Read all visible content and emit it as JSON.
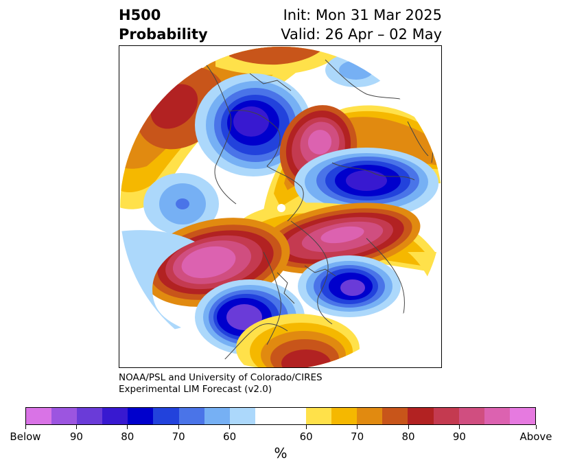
{
  "title": {
    "left_line1": "H500",
    "left_line2": "Probability",
    "right_line1": "Init: Mon 31 Mar 2025",
    "right_line2": "Valid: 26 Apr – 02 May"
  },
  "credits": {
    "line1": "NOAA/PSL and University of Colorado/CIRES",
    "line2": "Experimental LIM Forecast (v2.0)"
  },
  "colorbar": {
    "colors": [
      "#d973e6",
      "#9c55e0",
      "#6a3bd8",
      "#3819d0",
      "#0000cc",
      "#2242dc",
      "#4a74e8",
      "#76b0f4",
      "#acd8fb",
      "#ffffff",
      "#ffe14a",
      "#f5b800",
      "#e18a10",
      "#c8551a",
      "#b22222",
      "#c43a50",
      "#d04e80",
      "#dc62b0",
      "#e67ae0"
    ],
    "tick_labels": [
      "Below",
      "90",
      "80",
      "70",
      "60",
      "60",
      "70",
      "80",
      "90",
      "Above"
    ],
    "unit_label": "%"
  },
  "map": {
    "projection": "polar-stereographic-north",
    "coastline_color": "#444444",
    "features": [
      {
        "name": "north-pacific-above",
        "level": "above-80"
      },
      {
        "name": "northwest-canada-below",
        "level": "below-90"
      },
      {
        "name": "greenland-arctic-above",
        "level": "above-90"
      },
      {
        "name": "northern-europe-below",
        "level": "below-90"
      },
      {
        "name": "central-pacific-below",
        "level": "below-70"
      },
      {
        "name": "siberia-above",
        "level": "above-90"
      },
      {
        "name": "west-pacific-above",
        "level": "above-90"
      },
      {
        "name": "central-asia-below",
        "level": "below-90"
      },
      {
        "name": "east-asia-below",
        "level": "below-90"
      },
      {
        "name": "south-asia-above",
        "level": "above-80"
      }
    ]
  }
}
